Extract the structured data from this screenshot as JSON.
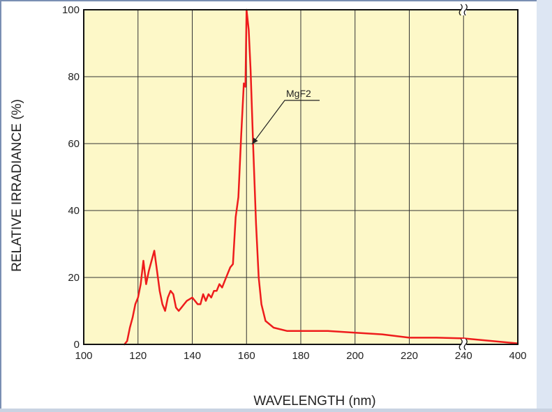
{
  "chart_data": {
    "type": "line",
    "title": "",
    "xlabel": "WAVELENGTH (nm)",
    "ylabel": "RELATIVE IRRADIANCE (%)",
    "ylim": [
      0,
      100
    ],
    "x_ticks": [
      "100",
      "120",
      "140",
      "160",
      "180",
      "200",
      "220",
      "240",
      "400"
    ],
    "y_ticks": [
      "0",
      "20",
      "40",
      "60",
      "80",
      "100"
    ],
    "x_axis_break": "between 240 and 400",
    "grid": true,
    "plot_background": "#fdf8c8",
    "series": [
      {
        "name": "MgF2",
        "color": "#ee1c1c",
        "points": [
          [
            115,
            0
          ],
          [
            116,
            1
          ],
          [
            117,
            5
          ],
          [
            118,
            8
          ],
          [
            119,
            12
          ],
          [
            120,
            14
          ],
          [
            121,
            18
          ],
          [
            122,
            25
          ],
          [
            123,
            18
          ],
          [
            124,
            22
          ],
          [
            125,
            25
          ],
          [
            126,
            28
          ],
          [
            127,
            22
          ],
          [
            128,
            16
          ],
          [
            129,
            12
          ],
          [
            130,
            10
          ],
          [
            131,
            14
          ],
          [
            132,
            16
          ],
          [
            133,
            15
          ],
          [
            134,
            11
          ],
          [
            135,
            10
          ],
          [
            136,
            11
          ],
          [
            137,
            12
          ],
          [
            138,
            13
          ],
          [
            140,
            14
          ],
          [
            141,
            13
          ],
          [
            142,
            12
          ],
          [
            143,
            12
          ],
          [
            144,
            15
          ],
          [
            145,
            13
          ],
          [
            146,
            15
          ],
          [
            147,
            14
          ],
          [
            148,
            16
          ],
          [
            149,
            16
          ],
          [
            150,
            18
          ],
          [
            151,
            17
          ],
          [
            152,
            19
          ],
          [
            153,
            21
          ],
          [
            154,
            23
          ],
          [
            155,
            24
          ],
          [
            156,
            38
          ],
          [
            157,
            44
          ],
          [
            158,
            62
          ],
          [
            159,
            78
          ],
          [
            159.6,
            77
          ],
          [
            160,
            100
          ],
          [
            160.8,
            94
          ],
          [
            161.5,
            82
          ],
          [
            162.5,
            58
          ],
          [
            163.5,
            36
          ],
          [
            164.5,
            20
          ],
          [
            165.5,
            12
          ],
          [
            167,
            7
          ],
          [
            170,
            5
          ],
          [
            175,
            4
          ],
          [
            180,
            4
          ],
          [
            190,
            4
          ],
          [
            200,
            3.5
          ],
          [
            210,
            3
          ],
          [
            220,
            2
          ],
          [
            230,
            2
          ],
          [
            240,
            1.8
          ],
          [
            400,
            0.3
          ]
        ]
      }
    ],
    "annotations": [
      {
        "text": "MgF2",
        "points_to": [
          161.5,
          65
        ]
      }
    ]
  }
}
